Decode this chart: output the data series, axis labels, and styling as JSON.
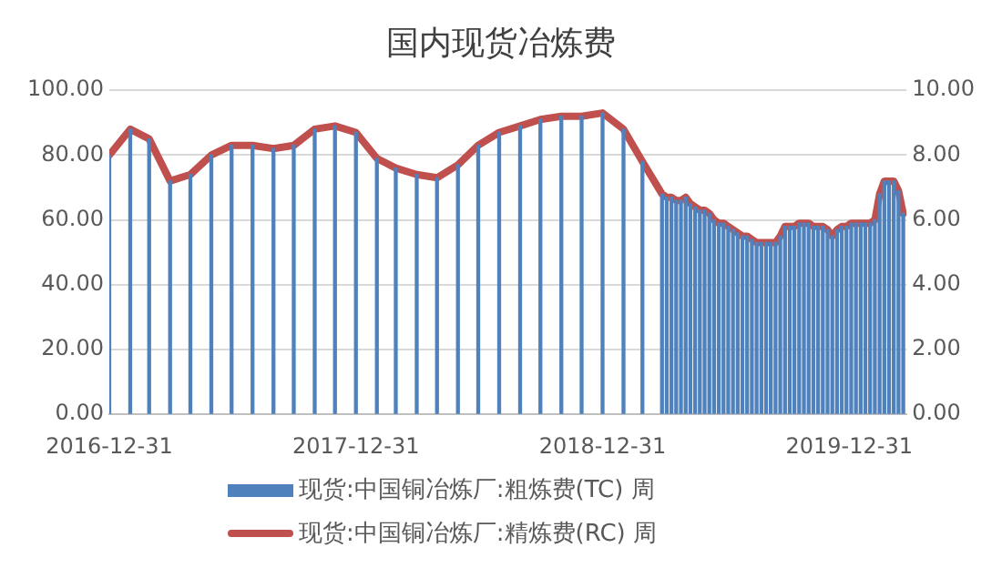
{
  "chart_data": {
    "type": "bar",
    "title": "国内现货冶炼费",
    "x": [
      "2016-12-31",
      "2017-01-31",
      "2017-02-28",
      "2017-03-31",
      "2017-04-30",
      "2017-05-31",
      "2017-06-30",
      "2017-07-31",
      "2017-08-31",
      "2017-09-30",
      "2017-10-31",
      "2017-11-30",
      "2017-12-31",
      "2018-01-31",
      "2018-02-28",
      "2018-03-31",
      "2018-04-30",
      "2018-05-31",
      "2018-06-30",
      "2018-07-31",
      "2018-08-31",
      "2018-09-30",
      "2018-10-31",
      "2018-11-30",
      "2018-12-31",
      "2019-01-31",
      "2019-02-28",
      "2019-03-29",
      "2019-04-05",
      "2019-04-12",
      "2019-04-19",
      "2019-04-26",
      "2019-05-03",
      "2019-05-10",
      "2019-05-17",
      "2019-05-24",
      "2019-05-31",
      "2019-06-07",
      "2019-06-14",
      "2019-06-21",
      "2019-06-28",
      "2019-07-05",
      "2019-07-12",
      "2019-07-19",
      "2019-07-26",
      "2019-08-02",
      "2019-08-09",
      "2019-08-16",
      "2019-08-23",
      "2019-08-30",
      "2019-09-06",
      "2019-09-13",
      "2019-09-20",
      "2019-09-27",
      "2019-10-04",
      "2019-10-11",
      "2019-10-18",
      "2019-10-25",
      "2019-11-01",
      "2019-11-08",
      "2019-11-15",
      "2019-11-22",
      "2019-11-29",
      "2019-12-06",
      "2019-12-13",
      "2019-12-20",
      "2019-12-27",
      "2020-01-03",
      "2020-01-10",
      "2020-01-17",
      "2020-01-24",
      "2020-01-31",
      "2020-02-07",
      "2020-02-14",
      "2020-02-21",
      "2020-02-28",
      "2020-03-06",
      "2020-03-13",
      "2020-03-20"
    ],
    "series": [
      {
        "name": "现货:中国铜冶炼厂:粗炼费(TC) 周",
        "color": "#4f81bd",
        "values": [
          80,
          88,
          85,
          72,
          74,
          80,
          83,
          83,
          82,
          83,
          88,
          89,
          87,
          79,
          76,
          74,
          73,
          77,
          83,
          87,
          89,
          91,
          92,
          92,
          93,
          88,
          78,
          68,
          67,
          67,
          66,
          66,
          67,
          65,
          64,
          63,
          63,
          62,
          60,
          59,
          59,
          58,
          57,
          56,
          55,
          55,
          54,
          53,
          53,
          53,
          53,
          53,
          55,
          58,
          58,
          58,
          59,
          59,
          59,
          58,
          58,
          58,
          57,
          55,
          57,
          58,
          58,
          59,
          59,
          59,
          59,
          59,
          60,
          68,
          72,
          72,
          72,
          69,
          62
        ]
      },
      {
        "name": "现货:中国铜冶炼厂:精炼费(RC) 周",
        "type": "line",
        "axis": "y2",
        "color": "#c0504d",
        "values": [
          8.0,
          8.8,
          8.5,
          7.2,
          7.4,
          8.0,
          8.3,
          8.3,
          8.2,
          8.3,
          8.8,
          8.9,
          8.7,
          7.9,
          7.6,
          7.4,
          7.3,
          7.7,
          8.3,
          8.7,
          8.9,
          9.1,
          9.2,
          9.2,
          9.3,
          8.8,
          7.8,
          6.8,
          6.7,
          6.7,
          6.6,
          6.6,
          6.7,
          6.5,
          6.4,
          6.3,
          6.3,
          6.2,
          6.0,
          5.9,
          5.9,
          5.8,
          5.7,
          5.6,
          5.5,
          5.5,
          5.4,
          5.3,
          5.3,
          5.3,
          5.3,
          5.3,
          5.5,
          5.8,
          5.8,
          5.8,
          5.9,
          5.9,
          5.9,
          5.8,
          5.8,
          5.8,
          5.7,
          5.5,
          5.7,
          5.8,
          5.8,
          5.9,
          5.9,
          5.9,
          5.9,
          5.9,
          6.0,
          6.8,
          7.2,
          7.2,
          7.2,
          6.9,
          6.2
        ]
      }
    ],
    "xlim": [
      "2016-12-31",
      "2020-03-25"
    ],
    "xticks": [
      "2016-12-31",
      "2017-12-31",
      "2018-12-31",
      "2019-12-31"
    ],
    "ylim": [
      0,
      100
    ],
    "yticks": [
      {
        "value": 0,
        "label": "0.00"
      },
      {
        "value": 20,
        "label": "20.00"
      },
      {
        "value": 40,
        "label": "40.00"
      },
      {
        "value": 60,
        "label": "60.00"
      },
      {
        "value": 80,
        "label": "80.00"
      },
      {
        "value": 100,
        "label": "100.00"
      }
    ],
    "y2lim": [
      0,
      10
    ],
    "y2ticks": [
      {
        "value": 0,
        "label": "0.00"
      },
      {
        "value": 2,
        "label": "2.00"
      },
      {
        "value": 4,
        "label": "4.00"
      },
      {
        "value": 6,
        "label": "6.00"
      },
      {
        "value": 8,
        "label": "8.00"
      },
      {
        "value": 10,
        "label": "10.00"
      }
    ],
    "grid": "y",
    "legend": "bottom",
    "marker": "none",
    "line_style": "solid"
  }
}
